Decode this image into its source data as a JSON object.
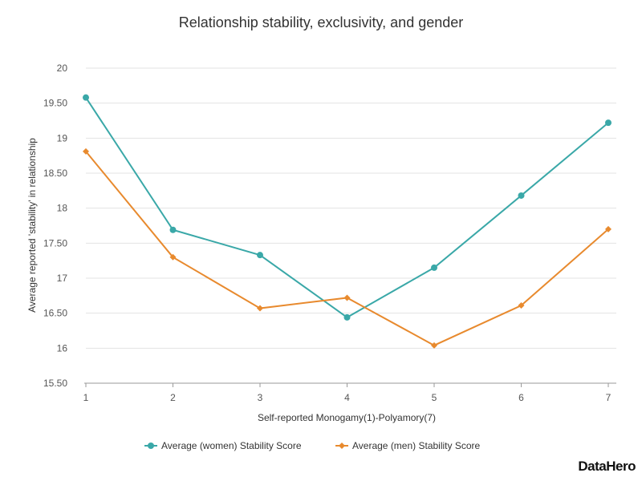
{
  "chart_data": {
    "type": "line",
    "title": "Relationship stability, exclusivity, and gender",
    "xlabel": "Self-reported Monogamy(1)-Polyamory(7)",
    "ylabel": "Average reported 'stability' in relationship",
    "x": [
      1,
      2,
      3,
      4,
      5,
      6,
      7
    ],
    "xticks": [
      "1",
      "2",
      "3",
      "4",
      "5",
      "6",
      "7"
    ],
    "ylim": [
      15.5,
      20
    ],
    "yticks": [
      "15.50",
      "16",
      "16.50",
      "17",
      "17.50",
      "18",
      "18.50",
      "19",
      "19.50",
      "20"
    ],
    "grid": true,
    "legend": "bottom",
    "series": [
      {
        "name": "Average (women) Stability Score",
        "color": "#3aa8a8",
        "marker": "circle",
        "values": [
          19.58,
          17.69,
          17.33,
          16.44,
          17.15,
          18.18,
          19.22
        ]
      },
      {
        "name": "Average (men) Stability Score",
        "color": "#e88a2e",
        "marker": "diamond",
        "values": [
          18.81,
          17.3,
          16.57,
          16.72,
          16.04,
          16.61,
          17.7
        ]
      }
    ]
  },
  "logo": "DataHero"
}
